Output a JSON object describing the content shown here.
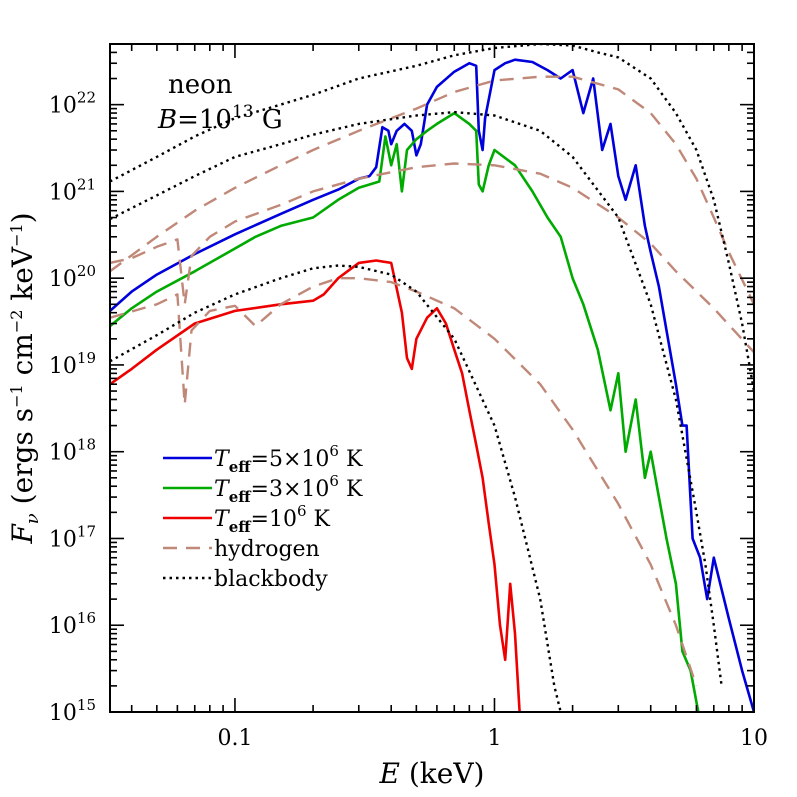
{
  "chart_data": {
    "type": "line",
    "xlabel": "E (keV)",
    "ylabel": "F_ν (ergs s⁻¹ cm⁻² keV⁻¹)",
    "x_scale": "log",
    "y_scale": "log",
    "xlim": [
      0.033,
      10
    ],
    "ylim": [
      1000000000000000.0,
      5e+22
    ],
    "x_ticks": [
      {
        "value": 0.1,
        "label": "0.1"
      },
      {
        "value": 1,
        "label": "1"
      },
      {
        "value": 10,
        "label": "10"
      }
    ],
    "y_ticks": [
      {
        "value": 1000000000000000.0,
        "mantissa": "10",
        "exp": "15"
      },
      {
        "value": 1e+16,
        "mantissa": "10",
        "exp": "16"
      },
      {
        "value": 1e+17,
        "mantissa": "10",
        "exp": "17"
      },
      {
        "value": 1e+18,
        "mantissa": "10",
        "exp": "18"
      },
      {
        "value": 1e+19,
        "mantissa": "10",
        "exp": "19"
      },
      {
        "value": 1e+20,
        "mantissa": "10",
        "exp": "20"
      },
      {
        "value": 1e+21,
        "mantissa": "10",
        "exp": "21"
      },
      {
        "value": 1e+22,
        "mantissa": "10",
        "exp": "22"
      }
    ],
    "annotations": {
      "line1": "neon",
      "line2_prefix": "B",
      "line2_mid": "=10",
      "line2_exp": "13",
      "line2_suffix": " G"
    },
    "legend": {
      "placement": "lower-left",
      "entries": [
        {
          "italic": "T",
          "sub": "eff",
          "text": "=5×10",
          "sup": "6",
          "tail": " K",
          "color": "#0000dd",
          "style": "solid"
        },
        {
          "italic": "T",
          "sub": "eff",
          "text": "=3×10",
          "sup": "6",
          "tail": " K",
          "color": "#00aa00",
          "style": "solid"
        },
        {
          "italic": "T",
          "sub": "eff",
          "text": "=10",
          "sup": "6",
          "tail": " K",
          "color": "#ee0000",
          "style": "solid"
        },
        {
          "italic": "",
          "sub": "",
          "text": "hydrogen",
          "sup": "",
          "tail": "",
          "color": "#c08878",
          "style": "dashed"
        },
        {
          "italic": "",
          "sub": "",
          "text": "blackbody",
          "sup": "",
          "tail": "",
          "color": "#000000",
          "style": "dotted"
        }
      ]
    },
    "series": [
      {
        "color": "#0000dd",
        "style": "solid",
        "points": [
          [
            0.033,
            4.2e+19
          ],
          [
            0.04,
            7e+19
          ],
          [
            0.05,
            1.1e+20
          ],
          [
            0.07,
            1.9e+20
          ],
          [
            0.1,
            3.2e+20
          ],
          [
            0.15,
            5.5e+20
          ],
          [
            0.2,
            8e+20
          ],
          [
            0.25,
            1.05e+21
          ],
          [
            0.3,
            1.4e+21
          ],
          [
            0.33,
            1.5e+21
          ],
          [
            0.35,
            1.9e+21
          ],
          [
            0.37,
            5.5e+21
          ],
          [
            0.39,
            5e+21
          ],
          [
            0.4,
            3.5e+21
          ],
          [
            0.42,
            5e+21
          ],
          [
            0.45,
            6e+21
          ],
          [
            0.48,
            5e+21
          ],
          [
            0.5,
            2.6e+21
          ],
          [
            0.52,
            3.5e+21
          ],
          [
            0.55,
            1e+22
          ],
          [
            0.6,
            1.6e+22
          ],
          [
            0.7,
            2.4e+22
          ],
          [
            0.8,
            3e+22
          ],
          [
            0.85,
            2.8e+22
          ],
          [
            0.87,
            5e+21
          ],
          [
            0.9,
            3e+21
          ],
          [
            0.92,
            7e+21
          ],
          [
            1.0,
            2.5e+22
          ],
          [
            1.1,
            3e+22
          ],
          [
            1.2,
            3.3e+22
          ],
          [
            1.4,
            3.1e+22
          ],
          [
            1.6,
            2.5e+22
          ],
          [
            1.8,
            2e+22
          ],
          [
            2.0,
            2.5e+22
          ],
          [
            2.2,
            8e+21
          ],
          [
            2.4,
            2e+22
          ],
          [
            2.6,
            3e+21
          ],
          [
            2.8,
            6e+21
          ],
          [
            3.0,
            1.5e+21
          ],
          [
            3.2,
            8e+20
          ],
          [
            3.5,
            2e+21
          ],
          [
            3.8,
            4e+20
          ],
          [
            4.0,
            2e+20
          ],
          [
            4.3,
            8e+19
          ],
          [
            4.6,
            2.5e+19
          ],
          [
            5.0,
            6e+18
          ],
          [
            5.3,
            2e+18
          ],
          [
            5.5,
            2e+18
          ],
          [
            5.8,
            1e+17
          ],
          [
            6.2,
            6e+16
          ],
          [
            6.6,
            2e+16
          ],
          [
            7,
            6e+16
          ],
          [
            8,
            1.2e+16
          ],
          [
            9,
            3000000000000000.0
          ],
          [
            10,
            1000000000000000.0
          ]
        ]
      },
      {
        "color": "#00aa00",
        "style": "solid",
        "points": [
          [
            0.033,
            2.8e+19
          ],
          [
            0.04,
            4.5e+19
          ],
          [
            0.05,
            7e+19
          ],
          [
            0.07,
            1.2e+20
          ],
          [
            0.1,
            2.2e+20
          ],
          [
            0.12,
            3e+20
          ],
          [
            0.15,
            4e+20
          ],
          [
            0.2,
            5e+20
          ],
          [
            0.25,
            8e+20
          ],
          [
            0.3,
            1.1e+21
          ],
          [
            0.33,
            1.2e+21
          ],
          [
            0.36,
            1.3e+21
          ],
          [
            0.38,
            4.3e+21
          ],
          [
            0.4,
            2e+21
          ],
          [
            0.42,
            3.5e+21
          ],
          [
            0.44,
            1e+21
          ],
          [
            0.46,
            3e+21
          ],
          [
            0.5,
            4e+21
          ],
          [
            0.55,
            5e+21
          ],
          [
            0.6,
            6e+21
          ],
          [
            0.7,
            8e+21
          ],
          [
            0.8,
            6e+21
          ],
          [
            0.85,
            5e+21
          ],
          [
            0.87,
            1.2e+21
          ],
          [
            0.9,
            1e+21
          ],
          [
            0.95,
            2e+21
          ],
          [
            1.0,
            3e+21
          ],
          [
            1.2,
            2e+21
          ],
          [
            1.4,
            1e+21
          ],
          [
            1.6,
            5e+20
          ],
          [
            1.8,
            3e+20
          ],
          [
            2.0,
            1e+20
          ],
          [
            2.2,
            5e+19
          ],
          [
            2.5,
            1.5e+19
          ],
          [
            2.8,
            3e+18
          ],
          [
            3.0,
            8e+18
          ],
          [
            3.2,
            1e+18
          ],
          [
            3.5,
            4e+18
          ],
          [
            3.8,
            5e+17
          ],
          [
            4.0,
            1e+18
          ],
          [
            4.3,
            3e+17
          ],
          [
            4.6,
            1e+17
          ],
          [
            5.0,
            3e+16
          ],
          [
            5.3,
            5000000000000000.0
          ],
          [
            5.7,
            3000000000000000.0
          ],
          [
            6.1,
            1000000000000000.0
          ]
        ]
      },
      {
        "color": "#ee0000",
        "style": "solid",
        "points": [
          [
            0.033,
            6e+18
          ],
          [
            0.04,
            9e+18
          ],
          [
            0.05,
            1.5e+19
          ],
          [
            0.07,
            3e+19
          ],
          [
            0.1,
            4.2e+19
          ],
          [
            0.15,
            5e+19
          ],
          [
            0.2,
            5.5e+19
          ],
          [
            0.22,
            6.5e+19
          ],
          [
            0.25,
            1e+20
          ],
          [
            0.3,
            1.5e+20
          ],
          [
            0.35,
            1.6e+20
          ],
          [
            0.4,
            1.5e+20
          ],
          [
            0.44,
            4e+19
          ],
          [
            0.46,
            1.2e+19
          ],
          [
            0.48,
            9e+18
          ],
          [
            0.5,
            2e+19
          ],
          [
            0.55,
            3.5e+19
          ],
          [
            0.6,
            4.5e+19
          ],
          [
            0.65,
            3e+19
          ],
          [
            0.7,
            1.5e+19
          ],
          [
            0.75,
            8e+18
          ],
          [
            0.8,
            3e+18
          ],
          [
            0.85,
            1.2e+18
          ],
          [
            0.9,
            5e+17
          ],
          [
            0.95,
            1.5e+17
          ],
          [
            1.0,
            5e+16
          ],
          [
            1.05,
            1e+16
          ],
          [
            1.1,
            4000000000000000.0
          ],
          [
            1.15,
            3e+16
          ],
          [
            1.2,
            8000000000000000.0
          ],
          [
            1.25,
            1000000000000000.0
          ]
        ]
      },
      {
        "color": "#c08878",
        "style": "dashed",
        "points": [
          [
            0.033,
            1.5e+20
          ],
          [
            0.04,
            1.7e+20
          ],
          [
            0.05,
            2.3e+20
          ],
          [
            0.06,
            2.8e+20
          ],
          [
            0.064,
            5e+19
          ],
          [
            0.068,
            1.8e+20
          ],
          [
            0.08,
            3e+20
          ],
          [
            0.1,
            4.5e+20
          ],
          [
            0.15,
            7e+20
          ],
          [
            0.2,
            1e+21
          ],
          [
            0.3,
            1.4e+21
          ],
          [
            0.5,
            1.9e+21
          ],
          [
            0.7,
            2.1e+21
          ],
          [
            1.0,
            2e+21
          ],
          [
            1.5,
            1.6e+21
          ],
          [
            2.0,
            1.1e+21
          ],
          [
            3.0,
            5e+20
          ],
          [
            4.0,
            2.5e+20
          ],
          [
            5.0,
            1.2e+20
          ],
          [
            7.0,
            4.5e+19
          ],
          [
            10.0,
            1.4e+19
          ]
        ]
      },
      {
        "color": "#c08878",
        "style": "dashed",
        "points": [
          [
            0.033,
            3.5e+19
          ],
          [
            0.05,
            5e+19
          ],
          [
            0.06,
            6.5e+19
          ],
          [
            0.064,
            3.5e+18
          ],
          [
            0.068,
            2.5e+19
          ],
          [
            0.08,
            4.2e+19
          ],
          [
            0.1,
            4.8e+19
          ],
          [
            0.12,
            2.8e+19
          ],
          [
            0.15,
            5e+19
          ],
          [
            0.2,
            8e+19
          ],
          [
            0.25,
            1e+20
          ],
          [
            0.3,
            1e+20
          ],
          [
            0.4,
            9e+19
          ],
          [
            0.5,
            7e+19
          ],
          [
            0.7,
            4.5e+19
          ],
          [
            1.0,
            2e+19
          ],
          [
            1.5,
            6e+18
          ],
          [
            2.0,
            1.8e+18
          ],
          [
            3.0,
            2.5e+17
          ],
          [
            4.0,
            5e+16
          ],
          [
            5.0,
            1e+16
          ],
          [
            6.0,
            2000000000000000.0
          ]
        ]
      },
      {
        "color": "#c08878",
        "style": "dashed",
        "points": [
          [
            0.033,
            1.2e+20
          ],
          [
            0.05,
            3e+20
          ],
          [
            0.07,
            6e+20
          ],
          [
            0.1,
            1.1e+21
          ],
          [
            0.15,
            2e+21
          ],
          [
            0.2,
            3e+21
          ],
          [
            0.3,
            5e+21
          ],
          [
            0.5,
            9e+21
          ],
          [
            0.7,
            1.4e+22
          ],
          [
            1.0,
            1.9e+22
          ],
          [
            1.5,
            2.1e+22
          ],
          [
            2.0,
            2.1e+22
          ],
          [
            3.0,
            1.5e+22
          ],
          [
            4.0,
            8e+21
          ],
          [
            5.0,
            3.5e+21
          ],
          [
            6.0,
            1.4e+21
          ],
          [
            7.0,
            5e+20
          ],
          [
            8.0,
            2e+20
          ],
          [
            10.0,
            5e+19
          ]
        ]
      },
      {
        "color": "#000000",
        "style": "dotted",
        "points": [
          [
            0.033,
            1.3e+21
          ],
          [
            0.05,
            2.5e+21
          ],
          [
            0.07,
            4.3e+21
          ],
          [
            0.1,
            7e+21
          ],
          [
            0.15,
            1e+22
          ],
          [
            0.2,
            1.3e+22
          ],
          [
            0.3,
            2e+22
          ],
          [
            0.5,
            2.8e+22
          ],
          [
            0.7,
            3.7e+22
          ],
          [
            1.0,
            4.5e+22
          ],
          [
            1.5,
            5e+22
          ],
          [
            2.0,
            4.8e+22
          ],
          [
            2.5,
            4e+22
          ],
          [
            3.0,
            3.5e+22
          ],
          [
            4.0,
            2e+22
          ],
          [
            5.0,
            8e+21
          ],
          [
            6.0,
            3e+21
          ],
          [
            7.0,
            8e+20
          ],
          [
            8.0,
            1.5e+20
          ],
          [
            9.0,
            3e+19
          ],
          [
            10.0,
            5e+18
          ]
        ]
      },
      {
        "color": "#000000",
        "style": "dotted",
        "points": [
          [
            0.033,
            4.8e+20
          ],
          [
            0.05,
            9e+20
          ],
          [
            0.07,
            1.5e+21
          ],
          [
            0.1,
            2.5e+21
          ],
          [
            0.15,
            3.5e+21
          ],
          [
            0.2,
            4.5e+21
          ],
          [
            0.3,
            6e+21
          ],
          [
            0.5,
            7.5e+21
          ],
          [
            0.7,
            8.2e+21
          ],
          [
            1.0,
            7.5e+21
          ],
          [
            1.5,
            5e+21
          ],
          [
            2.0,
            2.5e+21
          ],
          [
            3.0,
            5e+20
          ],
          [
            4.0,
            5e+19
          ],
          [
            5.0,
            4e+18
          ],
          [
            6.0,
            2e+17
          ],
          [
            6.5,
            5e+16
          ],
          [
            7.0,
            1e+16
          ],
          [
            7.5,
            2000000000000000.0
          ]
        ]
      },
      {
        "color": "#000000",
        "style": "dotted",
        "points": [
          [
            0.033,
            1.1e+19
          ],
          [
            0.05,
            2.2e+19
          ],
          [
            0.07,
            4e+19
          ],
          [
            0.1,
            6.5e+19
          ],
          [
            0.15,
            1e+20
          ],
          [
            0.2,
            1.3e+20
          ],
          [
            0.25,
            1.4e+20
          ],
          [
            0.3,
            1.35e+20
          ],
          [
            0.4,
            1.1e+20
          ],
          [
            0.5,
            7e+19
          ],
          [
            0.7,
            2e+19
          ],
          [
            1.0,
            2e+18
          ],
          [
            1.2,
            3e+17
          ],
          [
            1.5,
            2e+16
          ],
          [
            1.7,
            2000000000000000.0
          ],
          [
            1.8,
            1000000000000000.0
          ]
        ]
      }
    ]
  }
}
